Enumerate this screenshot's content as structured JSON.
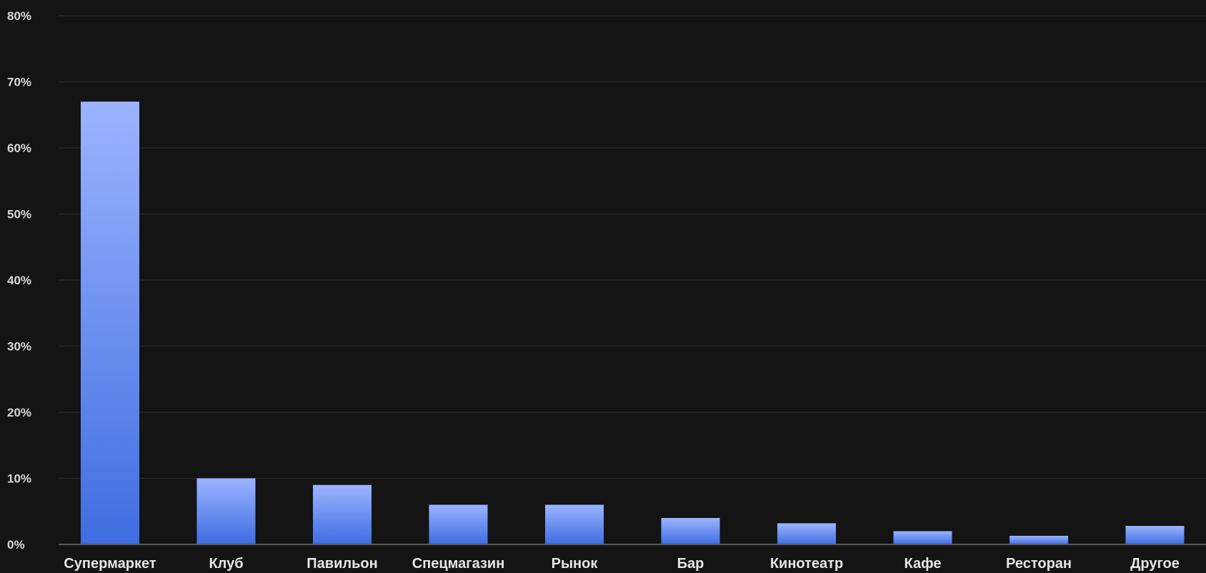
{
  "chart_data": {
    "type": "bar",
    "categories": [
      "Супермаркет",
      "Клуб",
      "Павильон",
      "Спецмагазин",
      "Рынок",
      "Бар",
      "Кинотеатр",
      "Кафе",
      "Ресторан",
      "Другое"
    ],
    "values": [
      67,
      10,
      9,
      6,
      6,
      4,
      3.2,
      2,
      1.3,
      2.8
    ],
    "y_tick_labels": [
      "0%",
      "10%",
      "20%",
      "30%",
      "40%",
      "50%",
      "60%",
      "70%",
      "80%"
    ],
    "y_ticks": [
      0,
      10,
      20,
      30,
      40,
      50,
      60,
      70,
      80
    ],
    "ylim": [
      0,
      80
    ],
    "grid": true,
    "legend": "none",
    "colors": {
      "background": "#141414",
      "bar_top": "#9bb4ff",
      "bar_bottom": "#3f6de0",
      "grid": "#262626",
      "axis": "#5a5a5a",
      "text": "#e6e6e6"
    }
  }
}
